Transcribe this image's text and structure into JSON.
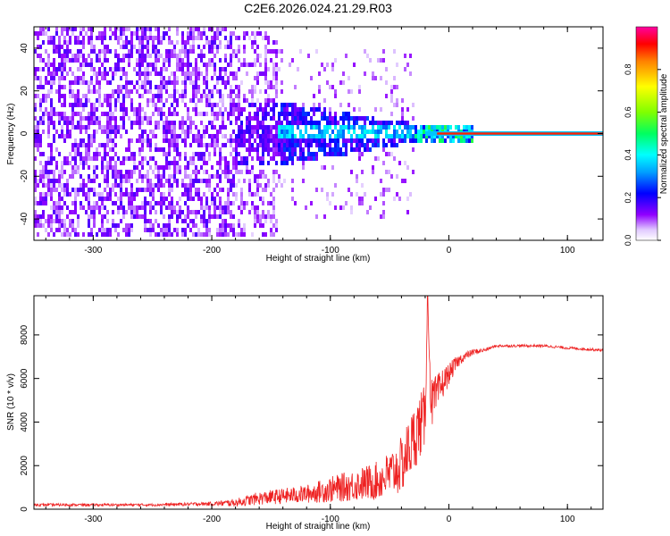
{
  "title": "C2E6.2026.024.21.29.R03",
  "colorbar": {
    "label": "Normalized spectral amplitude",
    "ticks": [
      "0.0",
      "0.2",
      "0.4",
      "0.6",
      "0.8"
    ],
    "tick_values": [
      0.0,
      0.2,
      0.4,
      0.6,
      0.8
    ],
    "range": [
      0,
      1
    ]
  },
  "chart_data": [
    {
      "type": "heatmap",
      "xlabel": "Height of straight line (km)",
      "ylabel": "Frequency (Hz)",
      "xlim": [
        -350,
        130
      ],
      "ylim": [
        -50,
        50
      ],
      "xticks": [
        -300,
        -200,
        -100,
        0,
        100
      ],
      "yticks": [
        -40,
        -20,
        0,
        20,
        40
      ],
      "xtick_labels": [
        "-300",
        "-200",
        "-100",
        "0",
        "100"
      ],
      "ytick_labels": [
        "-40",
        "-20",
        "0",
        "20",
        "40"
      ],
      "description_values": {
        "noise_region_x": [
          -350,
          -180
        ],
        "spread_region_x": [
          -180,
          -30
        ],
        "carrier_start_x": -30,
        "carrier_frequency": 0,
        "carrier_amplitude": 1.0,
        "noise_amplitude": [
          0.0,
          0.35
        ]
      },
      "colors": [
        "#ffffff",
        "#d8b8f8",
        "#8000ff",
        "#0000ff",
        "#00c0ff",
        "#00ff80",
        "#80ff00",
        "#ffc000",
        "#ff0000"
      ]
    },
    {
      "type": "line",
      "xlabel": "Height of straight line (km)",
      "ylabel": "SNR (10 * v/v)",
      "xlim": [
        -350,
        130
      ],
      "ylim": [
        0,
        9800
      ],
      "xticks": [
        -300,
        -200,
        -100,
        0,
        100
      ],
      "yticks": [
        0,
        2000,
        4000,
        6000,
        8000
      ],
      "xtick_labels": [
        "-300",
        "-200",
        "-100",
        "0",
        "100"
      ],
      "ytick_labels": [
        "0",
        "2000",
        "4000",
        "6000",
        "8000"
      ],
      "color": "#ee2222",
      "series": [
        {
          "x": [
            -350,
            -300,
            -250,
            -200,
            -180,
            -160,
            -140,
            -120,
            -100,
            -80,
            -60,
            -50,
            -40,
            -30,
            -25,
            -20,
            -18,
            -15,
            -10,
            -5,
            0,
            5,
            10,
            20,
            30,
            40,
            60,
            80,
            100,
            130
          ],
          "y": [
            200,
            200,
            200,
            250,
            300,
            500,
            600,
            700,
            900,
            1100,
            1300,
            1600,
            2000,
            3200,
            3800,
            4200,
            9800,
            4800,
            5200,
            5800,
            6200,
            6600,
            6900,
            7200,
            7300,
            7500,
            7500,
            7500,
            7400,
            7300
          ],
          "noise": [
            100,
            100,
            100,
            150,
            300,
            500,
            600,
            700,
            1000,
            1200,
            1500,
            1800,
            2200,
            2500,
            2500,
            2500,
            0,
            2000,
            1600,
            1200,
            800,
            600,
            400,
            250,
            150,
            100,
            100,
            100,
            100,
            100
          ]
        }
      ]
    }
  ]
}
